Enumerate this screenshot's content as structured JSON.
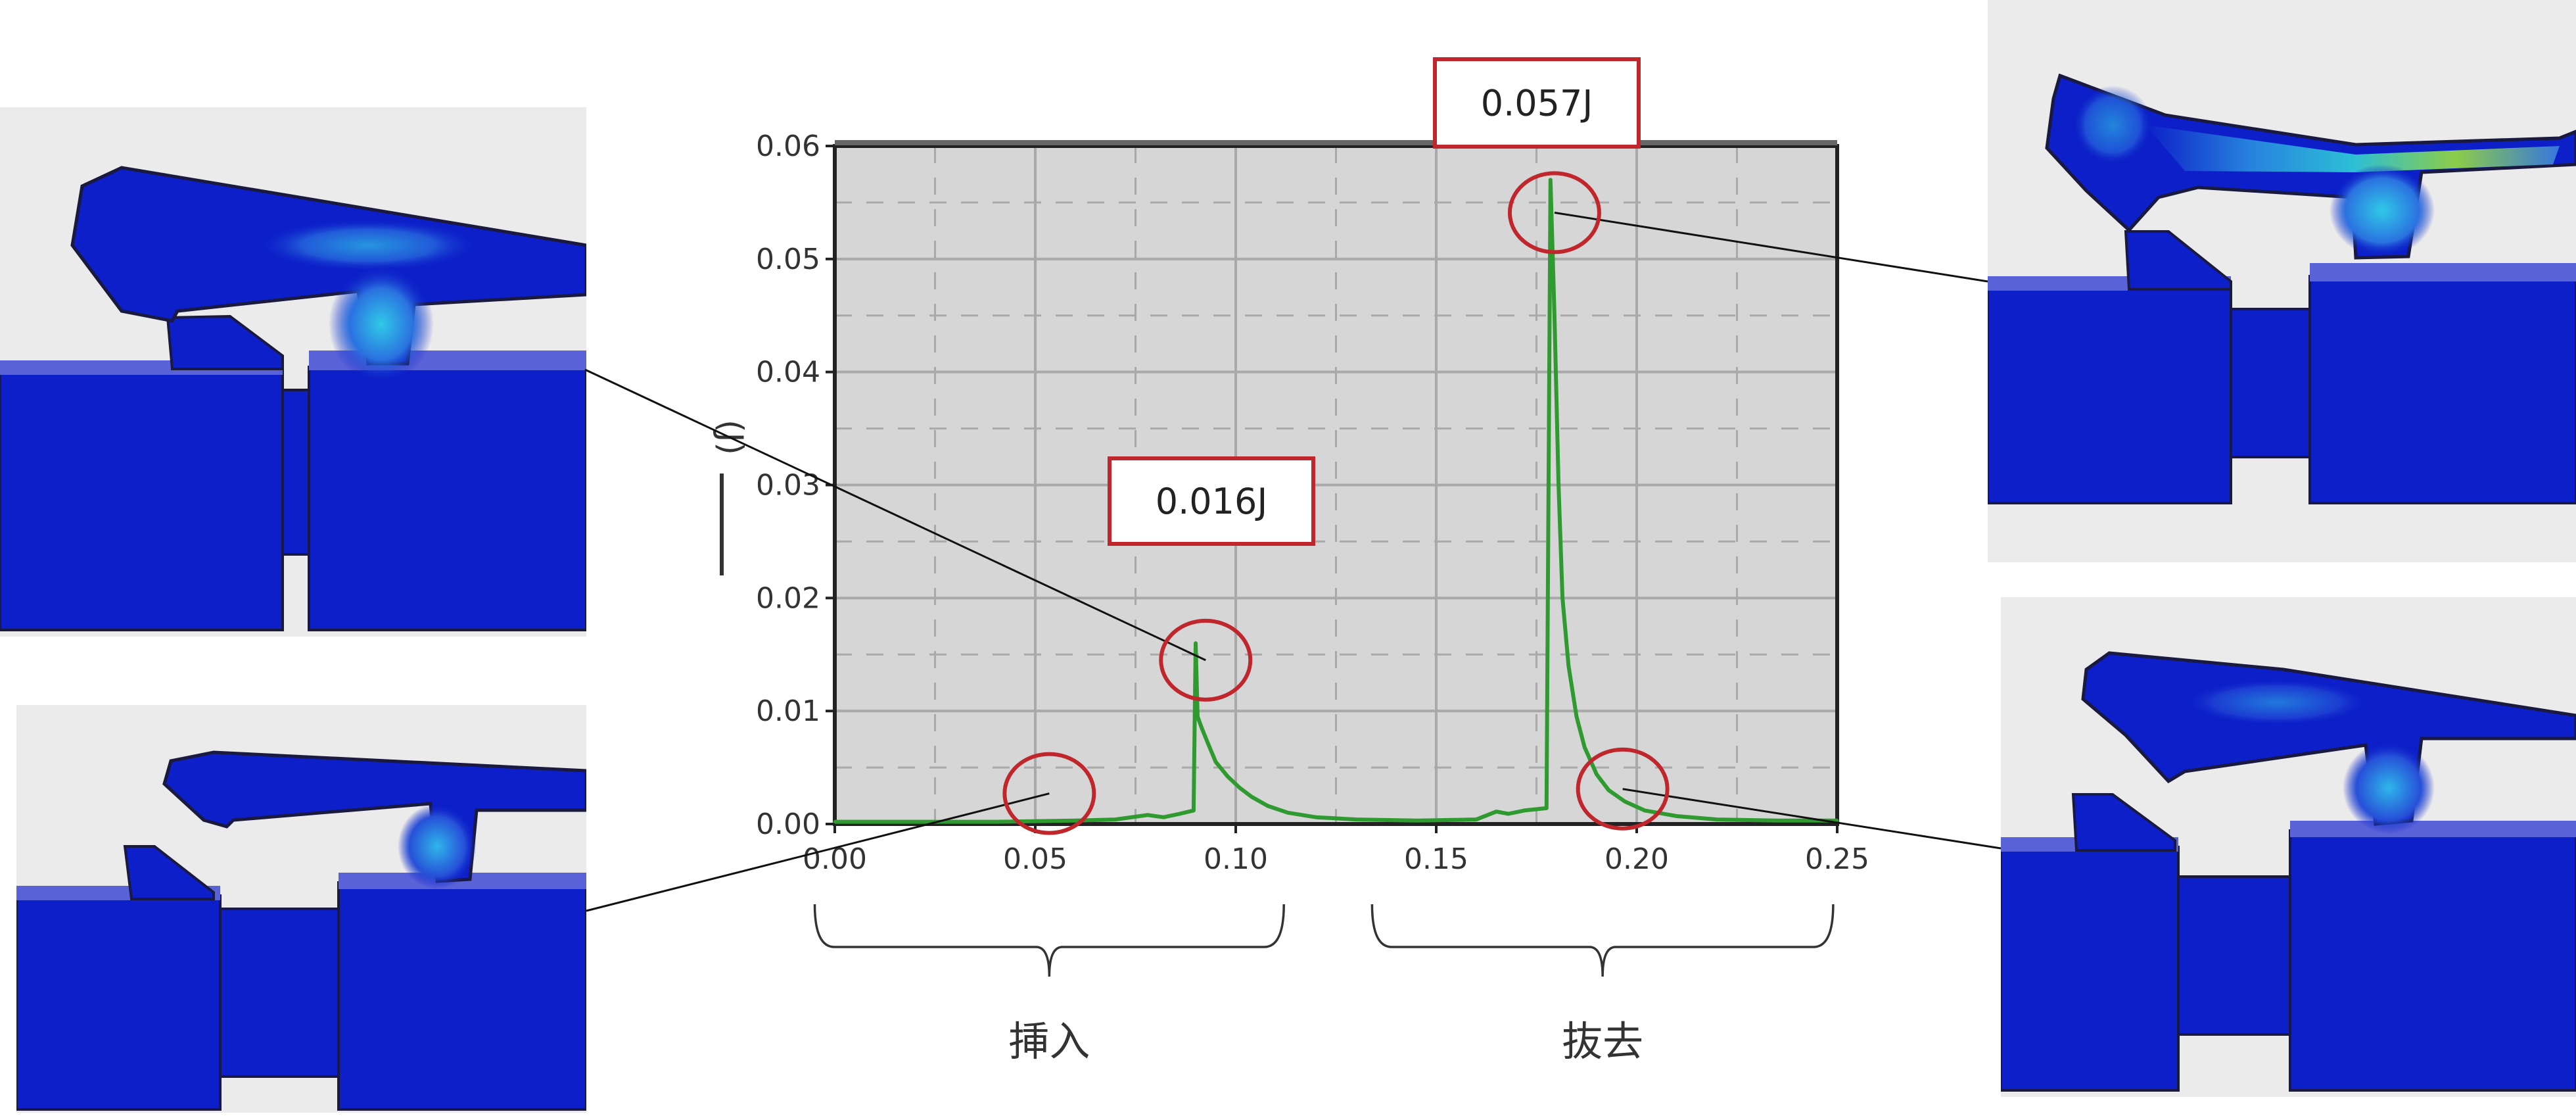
{
  "chart_data": {
    "type": "line",
    "xlabel": "",
    "ylabel": "(J)",
    "xlim": [
      0.0,
      0.25
    ],
    "ylim": [
      0.0,
      0.06
    ],
    "x_ticks": [
      "0.00",
      "0.05",
      "0.10",
      "0.15",
      "0.20",
      "0.25"
    ],
    "y_ticks": [
      "0.00",
      "0.01",
      "0.02",
      "0.03",
      "0.04",
      "0.05",
      "0.06"
    ],
    "grid": true,
    "series": [
      {
        "color": "#2f9a2f",
        "x": [
          0.0,
          0.02,
          0.04,
          0.06,
          0.07,
          0.078,
          0.082,
          0.086,
          0.0895,
          0.09,
          0.0905,
          0.0915,
          0.093,
          0.095,
          0.098,
          0.101,
          0.104,
          0.108,
          0.113,
          0.12,
          0.13,
          0.145,
          0.16,
          0.165,
          0.168,
          0.172,
          0.1775,
          0.1785,
          0.1795,
          0.1805,
          0.1815,
          0.183,
          0.185,
          0.187,
          0.19,
          0.193,
          0.197,
          0.202,
          0.21,
          0.22,
          0.235,
          0.25
        ],
        "y": [
          0.0002,
          0.0002,
          0.0002,
          0.0003,
          0.0004,
          0.0008,
          0.0006,
          0.0009,
          0.0012,
          0.016,
          0.0095,
          0.0085,
          0.0072,
          0.0055,
          0.0042,
          0.0032,
          0.0024,
          0.0016,
          0.001,
          0.0006,
          0.0004,
          0.0003,
          0.0004,
          0.0011,
          0.0009,
          0.0012,
          0.0014,
          0.057,
          0.045,
          0.03,
          0.02,
          0.014,
          0.0095,
          0.0068,
          0.0044,
          0.003,
          0.002,
          0.0012,
          0.0007,
          0.0004,
          0.0003,
          0.0003
        ]
      }
    ],
    "annotations": [
      {
        "text": "0.016J",
        "x": 0.09,
        "y": 0.016,
        "color": "#c0272d"
      },
      {
        "text": "0.057J",
        "x": 0.1785,
        "y": 0.057,
        "color": "#c0272d"
      }
    ],
    "highlight_circles": [
      {
        "x": 0.0535,
        "y": 0.0027
      },
      {
        "x": 0.0925,
        "y": 0.0145
      },
      {
        "x": 0.1795,
        "y": 0.0541
      },
      {
        "x": 0.1965,
        "y": 0.0031
      }
    ],
    "phases": [
      {
        "label": "挿入",
        "x_from": -0.005,
        "x_to": 0.112
      },
      {
        "label": "抜去",
        "x_from": 0.134,
        "x_to": 0.249
      }
    ]
  },
  "colors": {
    "plot_bg": "#d6d6d6",
    "grid": "#a9a9a9",
    "line": "#2f9a2f",
    "callout": "#c0272d",
    "part_blue": "#0c1fc8",
    "part_edge": "#1a1a40",
    "thumb_bg": "#ebebeb"
  },
  "snapshots": [
    {
      "id": "top-left",
      "stress": "medium"
    },
    {
      "id": "bottom-left",
      "stress": "low"
    },
    {
      "id": "top-right",
      "stress": "high"
    },
    {
      "id": "bottom-right",
      "stress": "low"
    }
  ]
}
